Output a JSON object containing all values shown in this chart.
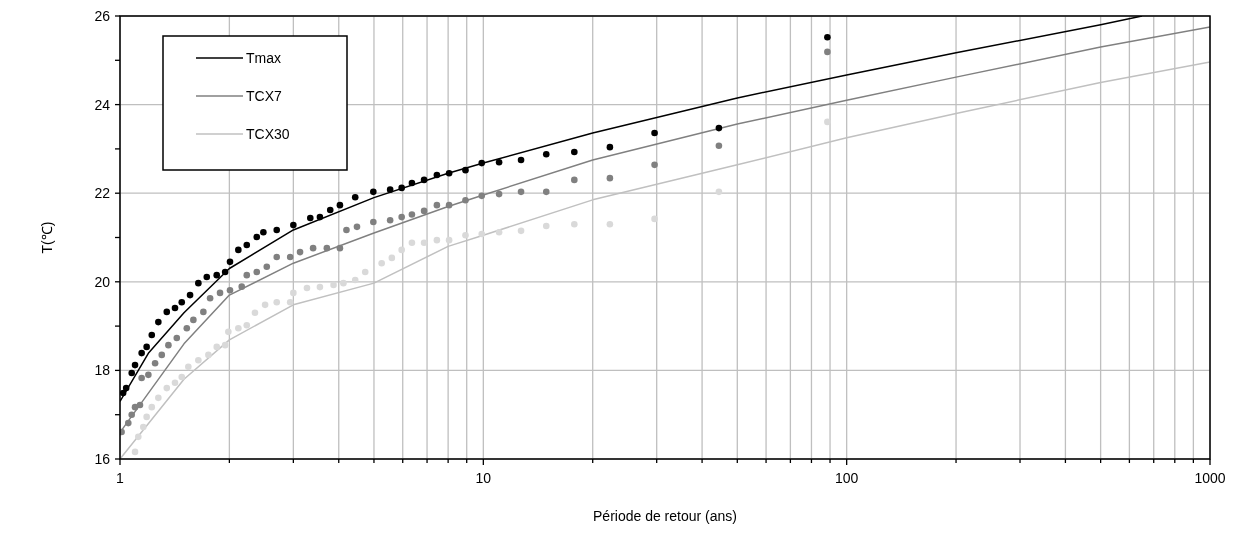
{
  "chart_data": {
    "type": "line",
    "xlabel": "Période de retour (ans)",
    "ylabel": "T(℃)",
    "log": "x",
    "grid": true,
    "legend": "top left",
    "xlim": [
      1,
      1000
    ],
    "ylim": [
      16,
      26
    ],
    "xticks": [
      1,
      {
        "value": 2,
        "label": null
      },
      {
        "value": 3,
        "label": null
      },
      {
        "value": 4,
        "label": null
      },
      {
        "value": 5,
        "label": null
      },
      {
        "value": 6,
        "label": null
      },
      {
        "value": 7,
        "label": null
      },
      {
        "value": 8,
        "label": null
      },
      {
        "value": 9,
        "label": null
      },
      10,
      {
        "value": 20,
        "label": null
      },
      {
        "value": 30,
        "label": null
      },
      {
        "value": 40,
        "label": null
      },
      {
        "value": 50,
        "label": null
      },
      {
        "value": 60,
        "label": null
      },
      {
        "value": 70,
        "label": null
      },
      {
        "value": 80,
        "label": null
      },
      {
        "value": 90,
        "label": null
      },
      100,
      {
        "value": 200,
        "label": null
      },
      {
        "value": 300,
        "label": null
      },
      {
        "value": 400,
        "label": null
      },
      {
        "value": 500,
        "label": null
      },
      {
        "value": 600,
        "label": null
      },
      {
        "value": 700,
        "label": null
      },
      {
        "value": 800,
        "label": null
      },
      {
        "value": 900,
        "label": null
      },
      1000
    ],
    "yticks": [
      16,
      {
        "value": 17,
        "label": null
      },
      18,
      {
        "value": 19,
        "label": null
      },
      20,
      {
        "value": 21,
        "label": null
      },
      22,
      {
        "value": 23,
        "label": null
      },
      24,
      {
        "value": 25,
        "label": null
      },
      26
    ],
    "series": [
      {
        "name": "Tmax",
        "marker": "none",
        "line_style": "solid",
        "color": "#000000",
        "x": [
          1,
          1.2,
          1.5,
          2,
          3,
          5,
          8,
          10,
          20,
          50,
          100,
          200,
          500,
          650
        ],
        "values": [
          17.3,
          18.4,
          19.3,
          20.3,
          21.17,
          21.9,
          22.45,
          22.68,
          23.36,
          24.15,
          24.67,
          25.17,
          25.8,
          26
        ]
      },
      {
        "name": "TCX7",
        "marker": "none",
        "line_style": "solid",
        "color": "#808080",
        "x": [
          1,
          1.5,
          2,
          3,
          5,
          8,
          10,
          20,
          50,
          100,
          200,
          500,
          1000
        ],
        "values": [
          16.6,
          18.6,
          19.7,
          20.42,
          21.1,
          21.7,
          21.96,
          22.75,
          23.56,
          24.1,
          24.62,
          25.3,
          25.75
        ]
      },
      {
        "name": "TCX30",
        "marker": "none",
        "line_style": "solid",
        "color": "#c0c0c0",
        "x": [
          1,
          1.5,
          2,
          3,
          5,
          8,
          10,
          20,
          50,
          100,
          200,
          500,
          1000
        ],
        "values": [
          16.0,
          17.8,
          18.69,
          19.48,
          19.97,
          20.8,
          21.05,
          21.85,
          22.64,
          23.25,
          23.8,
          24.5,
          24.96
        ]
      },
      {
        "type": "scatter",
        "marker": "circle",
        "color": "#000000",
        "x": [
          1.02,
          1.04,
          1.077,
          1.1,
          1.147,
          1.184,
          1.223,
          1.275,
          1.345,
          1.417,
          1.479,
          1.559,
          1.643,
          1.733,
          1.846,
          1.947,
          2.008,
          2.117,
          2.233,
          2.379,
          2.481,
          2.7,
          3.0,
          3.34,
          3.55,
          3.79,
          4.03,
          4.44,
          4.98,
          5.54,
          5.96,
          6.36,
          6.87,
          7.45,
          8.05,
          8.93,
          9.9,
          11.05,
          12.7,
          14.9,
          17.8,
          22.3,
          29.6,
          44.5,
          88.5
        ],
        "values": [
          17.49,
          17.6,
          17.94,
          18.12,
          18.39,
          18.53,
          18.8,
          19.09,
          19.32,
          19.41,
          19.54,
          19.7,
          19.97,
          20.11,
          20.15,
          20.22,
          20.45,
          20.72,
          20.83,
          21.01,
          21.12,
          21.17,
          21.28,
          21.44,
          21.46,
          21.62,
          21.73,
          21.91,
          22.03,
          22.08,
          22.12,
          22.23,
          22.3,
          22.41,
          22.45,
          22.52,
          22.68,
          22.7,
          22.75,
          22.88,
          22.93,
          23.04,
          23.36,
          23.47,
          25.52
        ]
      },
      {
        "type": "scatter",
        "marker": "circle",
        "color": "#808080",
        "x": [
          1.01,
          1.054,
          1.077,
          1.1,
          1.135,
          1.147,
          1.197,
          1.249,
          1.303,
          1.359,
          1.433,
          1.527,
          1.592,
          1.696,
          1.77,
          1.885,
          2.008,
          2.163,
          2.233,
          2.379,
          2.535,
          2.7,
          2.94,
          3.13,
          3.4,
          3.71,
          4.03,
          4.2,
          4.49,
          4.98,
          5.54,
          5.96,
          6.36,
          6.87,
          7.45,
          8.05,
          8.93,
          9.9,
          11.05,
          12.7,
          14.9,
          17.8,
          22.3,
          29.6,
          44.5,
          88.5
        ],
        "values": [
          16.61,
          16.81,
          17.0,
          17.17,
          17.22,
          17.83,
          17.9,
          18.16,
          18.35,
          18.57,
          18.73,
          18.95,
          19.14,
          19.32,
          19.63,
          19.75,
          19.81,
          19.89,
          20.15,
          20.22,
          20.34,
          20.56,
          20.56,
          20.67,
          20.76,
          20.76,
          20.76,
          21.17,
          21.24,
          21.35,
          21.39,
          21.46,
          21.52,
          21.6,
          21.73,
          21.73,
          21.84,
          21.94,
          21.98,
          22.03,
          22.03,
          22.3,
          22.34,
          22.64,
          23.07,
          25.19
        ]
      },
      {
        "type": "scatter",
        "marker": "circle",
        "color": "#d9d9d9",
        "x": [
          1.1,
          1.123,
          1.159,
          1.184,
          1.223,
          1.275,
          1.345,
          1.417,
          1.479,
          1.542,
          1.643,
          1.751,
          1.846,
          1.947,
          1.987,
          2.117,
          2.233,
          2.352,
          2.508,
          2.7,
          2.94,
          3.0,
          3.27,
          3.55,
          3.87,
          4.12,
          4.44,
          4.73,
          5.25,
          5.6,
          5.96,
          6.36,
          6.87,
          7.45,
          8.05,
          8.93,
          9.9,
          11.05,
          12.7,
          14.9,
          17.8,
          22.3,
          29.6,
          44.5,
          88.5
        ],
        "values": [
          16.16,
          16.5,
          16.72,
          16.95,
          17.17,
          17.38,
          17.6,
          17.72,
          17.85,
          18.08,
          18.23,
          18.35,
          18.53,
          18.57,
          18.87,
          18.95,
          19.02,
          19.3,
          19.48,
          19.54,
          19.54,
          19.75,
          19.86,
          19.88,
          19.93,
          19.97,
          20.04,
          20.22,
          20.42,
          20.54,
          20.72,
          20.88,
          20.88,
          20.94,
          20.94,
          21.05,
          21.08,
          21.12,
          21.15,
          21.26,
          21.3,
          21.3,
          21.42,
          22.03,
          23.61
        ]
      }
    ]
  }
}
